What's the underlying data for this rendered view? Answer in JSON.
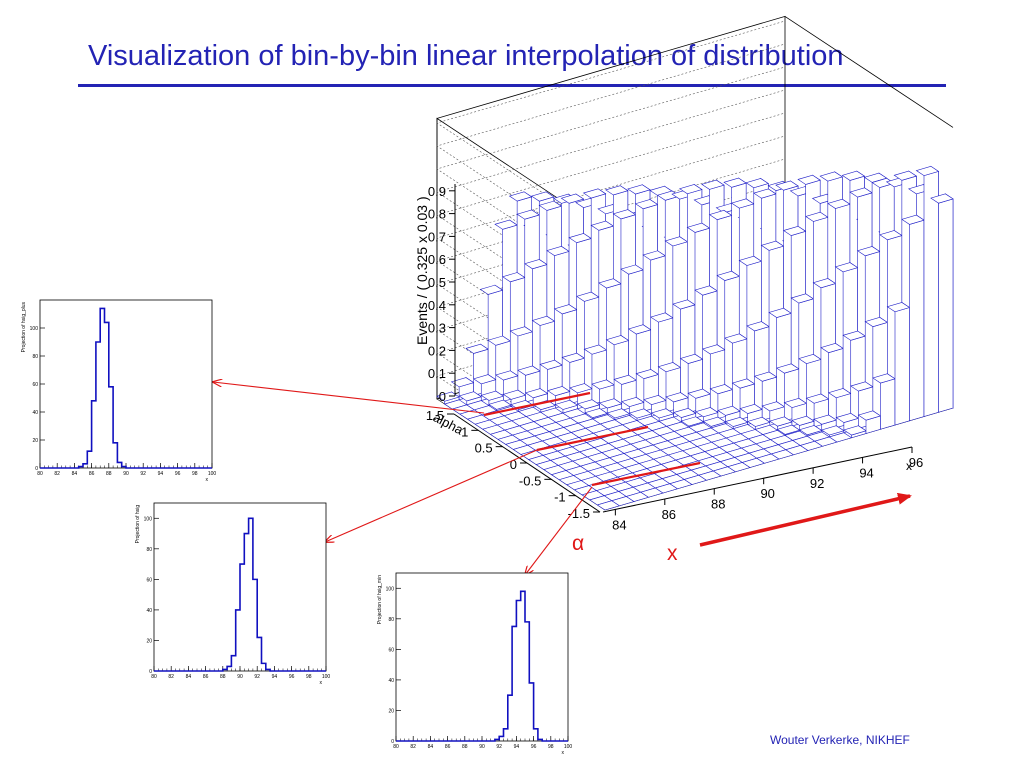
{
  "slide": {
    "title": "Visualization of bin-by-bin linear interpolation of distribution",
    "footer": "Wouter Verkerke, NIKHEF",
    "accent": "#2323b4",
    "arrow_color": "#e01818"
  },
  "main_plot": {
    "zlabel": "Events / ( 0.325 x 0.03 )",
    "ylabel": "alpha",
    "xlabel": "x",
    "z_ticks": [
      "0",
      "0.1",
      "0.2",
      "0.3",
      "0.4",
      "0.5",
      "0.6",
      "0.7",
      "0.8",
      "0.9"
    ],
    "alpha_ticks": [
      "-1.5",
      "-1",
      "-0.5",
      "0",
      "0.5",
      "1",
      "1.5"
    ],
    "x_ticks": [
      "84",
      "86",
      "88",
      "90",
      "92",
      "94",
      "96"
    ],
    "alpha_symbol": "α",
    "x_symbol": "x"
  },
  "chart_data": [
    {
      "type": "bar",
      "ylabel": "Projection of hsig_plus",
      "xlabel": "x",
      "x_ticks": [
        "80",
        "82",
        "84",
        "86",
        "88",
        "90",
        "92",
        "94",
        "96",
        "98",
        "100"
      ],
      "y_ticks": [
        "0",
        "20",
        "40",
        "60",
        "80",
        "100"
      ],
      "xlim": [
        80,
        100
      ],
      "ylim": [
        0,
        120
      ],
      "bin_width": 0.5,
      "bin_starts": [
        84.5,
        85.0,
        85.5,
        86.0,
        86.5,
        87.0,
        87.5,
        88.0,
        88.5,
        89.0,
        89.5
      ],
      "values": [
        1,
        3,
        12,
        48,
        90,
        114,
        104,
        58,
        18,
        4,
        1
      ]
    },
    {
      "type": "bar",
      "ylabel": "Projection of hsig",
      "xlabel": "x",
      "x_ticks": [
        "80",
        "82",
        "84",
        "86",
        "88",
        "90",
        "92",
        "94",
        "96",
        "98",
        "100"
      ],
      "y_ticks": [
        "0",
        "20",
        "40",
        "60",
        "80",
        "100"
      ],
      "xlim": [
        80,
        100
      ],
      "ylim": [
        0,
        110
      ],
      "bin_width": 0.5,
      "bin_starts": [
        88.0,
        88.5,
        89.0,
        89.5,
        90.0,
        90.5,
        91.0,
        91.5,
        92.0,
        92.5,
        93.0
      ],
      "values": [
        1,
        3,
        10,
        40,
        70,
        90,
        100,
        60,
        22,
        5,
        1
      ]
    },
    {
      "type": "bar",
      "ylabel": "Projection of hsig_min",
      "xlabel": "x",
      "x_ticks": [
        "80",
        "82",
        "84",
        "86",
        "88",
        "90",
        "92",
        "94",
        "96",
        "98",
        "100"
      ],
      "y_ticks": [
        "0",
        "20",
        "40",
        "60",
        "80",
        "100"
      ],
      "xlim": [
        80,
        100
      ],
      "ylim": [
        0,
        110
      ],
      "bin_width": 0.5,
      "bin_starts": [
        91.5,
        92.0,
        92.5,
        93.0,
        93.5,
        94.0,
        94.5,
        95.0,
        95.5,
        96.0,
        96.5
      ],
      "values": [
        1,
        3,
        8,
        30,
        75,
        92,
        98,
        78,
        38,
        8,
        1
      ]
    }
  ]
}
